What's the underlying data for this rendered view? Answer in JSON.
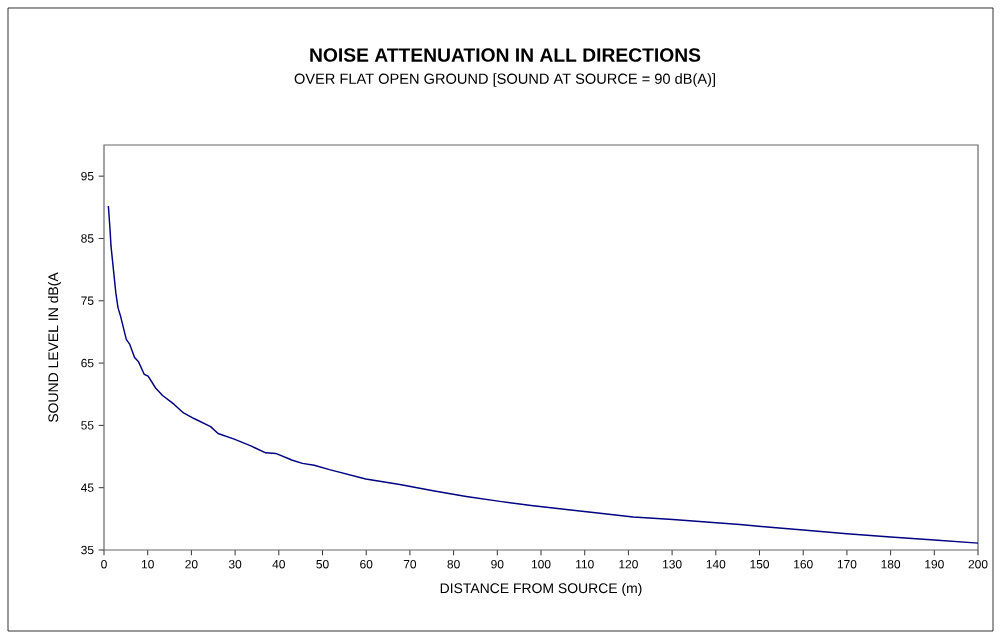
{
  "chart_data": {
    "type": "line",
    "title": "NOISE ATTENUATION IN ALL DIRECTIONS",
    "subtitle": "OVER FLAT OPEN GROUND [SOUND AT SOURCE = 90 dB(A)]",
    "xlabel": "DISTANCE FROM SOURCE (m)",
    "ylabel": "SOUND LEVEL IN dB(A",
    "x": [
      1,
      1.4,
      1.6,
      2.7,
      3.2,
      3.8,
      5.1,
      5.9,
      7,
      7.9,
      9.2,
      10.1,
      11.8,
      13.4,
      16,
      18.2,
      20.6,
      24.4,
      26.1,
      29.8,
      33.6,
      37,
      39.3,
      43.1,
      45.4,
      48.1,
      51.6,
      59.9,
      67.7,
      75.3,
      82.9,
      90.6,
      98.2,
      105.8,
      113.5,
      121.1,
      130.2,
      137.8,
      145.5,
      153.1,
      160,
      170,
      180,
      190,
      200
    ],
    "series": [
      {
        "color": "#000080",
        "values": [
          90.2,
          86.2,
          83.8,
          76.3,
          73.9,
          72.5,
          68.8,
          68,
          65.9,
          65.2,
          63.2,
          62.9,
          61,
          59.8,
          58.4,
          57,
          56.1,
          54.8,
          53.7,
          52.8,
          51.7,
          50.6,
          50.5,
          49.4,
          48.9,
          48.6,
          47.9,
          46.4,
          45.5,
          44.5,
          43.6,
          42.8,
          42.1,
          41.5,
          40.9,
          40.3,
          39.9,
          39.5,
          39.1,
          38.6,
          38.2,
          37.6,
          37.1,
          36.6,
          36.1
        ]
      }
    ],
    "xlim": [
      0,
      200
    ],
    "ylim": [
      35,
      100
    ],
    "xticks": [
      0,
      10,
      20,
      30,
      40,
      50,
      60,
      70,
      80,
      90,
      100,
      110,
      120,
      130,
      140,
      150,
      160,
      170,
      180,
      190,
      200
    ],
    "yticks": [
      35,
      45,
      55,
      65,
      75,
      85,
      95
    ]
  }
}
